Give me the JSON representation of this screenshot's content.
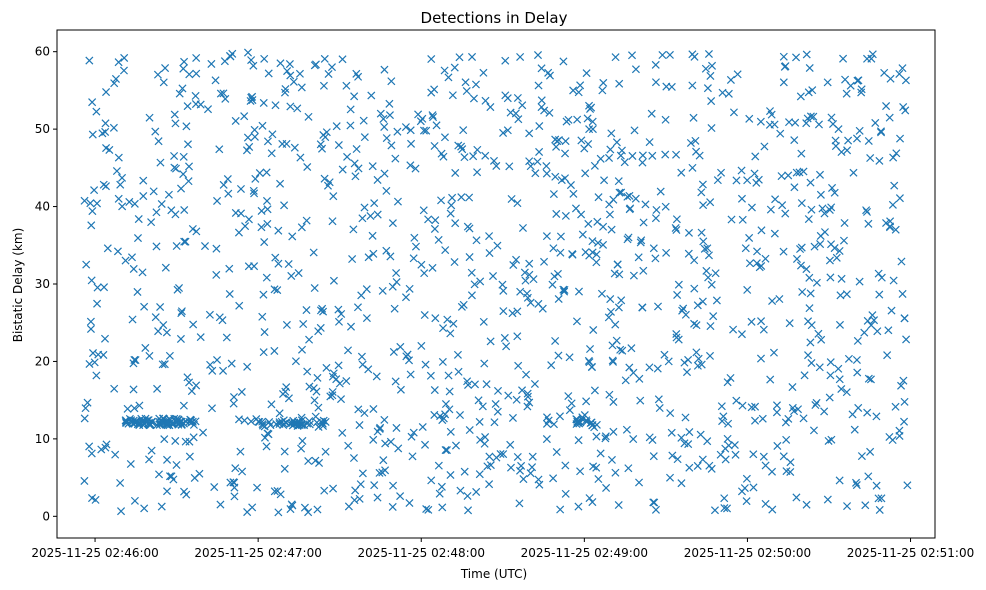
{
  "chart_data": {
    "type": "scatter",
    "title": "Detections in Delay",
    "xlabel": "Time (UTC)",
    "ylabel": "Bistatic Delay (km)",
    "marker": "x",
    "color": "#1f77b4",
    "grid": false,
    "legend": "none",
    "x_ticks": [
      "2025-11-25 02:46:00",
      "2025-11-25 02:47:00",
      "2025-11-25 02:48:00",
      "2025-11-25 02:49:00",
      "2025-11-25 02:50:00",
      "2025-11-25 02:51:00"
    ],
    "y_ticks": [
      "0",
      "10",
      "20",
      "30",
      "40",
      "50",
      "60"
    ],
    "xlim": [
      "2025-11-25 02:45:46",
      "2025-11-25 02:51:09"
    ],
    "ylim": [
      -2.8,
      62.8
    ],
    "distribution": {
      "x_range": [
        "2025-11-25 02:45:56",
        "2025-11-25 02:50:59"
      ],
      "y_range": [
        0.5,
        60
      ],
      "count": 1450,
      "dense_bands": [
        {
          "x_from": "2025-11-25 02:46:10",
          "x_to": "2025-11-25 02:46:37",
          "y": 12.2
        },
        {
          "x_from": "2025-11-25 02:47:00",
          "x_to": "2025-11-25 02:47:25",
          "y": 12.0
        },
        {
          "x_from": "2025-11-25 02:48:57",
          "x_to": "2025-11-25 02:49:05",
          "y": 12.1
        }
      ]
    }
  }
}
